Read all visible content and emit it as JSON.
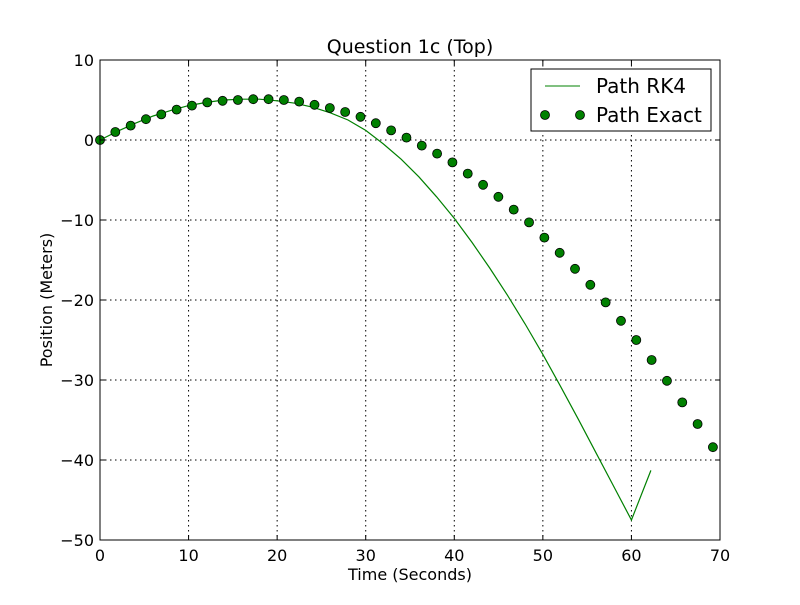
{
  "chart_data": {
    "type": "line",
    "title": "Question 1c (Top)",
    "xlabel": "Time (Seconds)",
    "ylabel": "Position (Meters)",
    "xlim": [
      0,
      70
    ],
    "ylim": [
      -50,
      10
    ],
    "xticks": [
      0,
      10,
      20,
      30,
      40,
      50,
      60,
      70
    ],
    "yticks": [
      -50,
      -40,
      -30,
      -20,
      -10,
      0,
      10
    ],
    "grid": true,
    "legend_position": "top-right",
    "series": [
      {
        "name": "Path RK4",
        "style": "line",
        "color": "#008000",
        "x": [
          0,
          2,
          4,
          6,
          8,
          10,
          12,
          14,
          16,
          18,
          20,
          22,
          24,
          26,
          28,
          30,
          32,
          34,
          36,
          38,
          40,
          42,
          44,
          46,
          48,
          50,
          52,
          54,
          56,
          58,
          60,
          62.2
        ],
        "y": [
          0,
          1.1,
          2.1,
          3.0,
          3.7,
          4.3,
          4.7,
          5.0,
          5.1,
          5.1,
          4.9,
          4.6,
          4.1,
          3.4,
          2.5,
          1.2,
          -0.5,
          -2.4,
          -4.6,
          -7.1,
          -9.8,
          -12.8,
          -16.0,
          -19.4,
          -23.0,
          -26.8,
          -30.8,
          -34.9,
          -39.1,
          -43.3,
          -47.5,
          -41.3
        ]
      },
      {
        "name": "Path Exact",
        "style": "marker",
        "color": "#008000",
        "x": [
          0,
          1.73,
          3.46,
          5.19,
          6.92,
          8.65,
          10.38,
          12.11,
          13.84,
          15.57,
          17.3,
          19.03,
          20.76,
          22.49,
          24.22,
          25.95,
          27.68,
          29.41,
          31.14,
          32.87,
          34.6,
          36.33,
          38.06,
          39.79,
          41.52,
          43.25,
          44.98,
          46.71,
          48.44,
          50.17,
          51.9,
          53.63,
          55.36,
          57.09,
          58.82,
          60.55,
          62.28,
          64.01,
          65.74,
          67.47,
          69.2
        ],
        "y": [
          0,
          1.0,
          1.8,
          2.6,
          3.2,
          3.8,
          4.3,
          4.7,
          4.9,
          5.0,
          5.1,
          5.1,
          5.0,
          4.8,
          4.4,
          4.0,
          3.5,
          2.9,
          2.1,
          1.2,
          0.3,
          -0.7,
          -1.7,
          -2.8,
          -4.2,
          -5.6,
          -7.1,
          -8.7,
          -10.3,
          -12.2,
          -14.1,
          -16.1,
          -18.1,
          -20.3,
          -22.6,
          -25.0,
          -27.5,
          -30.1,
          -32.8,
          -35.5,
          -38.4
        ]
      }
    ]
  }
}
